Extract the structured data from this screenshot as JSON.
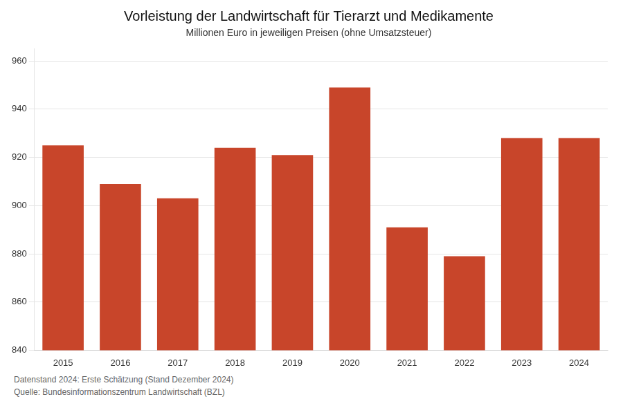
{
  "chart_data": {
    "type": "bar",
    "title": "Vorleistung der Landwirtschaft für Tierarzt und Medikamente",
    "subtitle": "Millionen Euro in jeweiligen Preisen (ohne Umsatzsteuer)",
    "annotations": [
      "Datenstand 2024: Erste Schätzung (Stand Dezember 2024)",
      "Quelle: Bundesinformationszentrum Landwirtschaft (BZL)"
    ],
    "categories": [
      "2015",
      "2016",
      "2017",
      "2018",
      "2019",
      "2020",
      "2021",
      "2022",
      "2023",
      "2024"
    ],
    "values": [
      925,
      909,
      903,
      924,
      921,
      949,
      891,
      879,
      928,
      928
    ],
    "color": "#C8452A",
    "ylim": [
      840,
      965
    ],
    "yticks": [
      840,
      860,
      880,
      900,
      920,
      940,
      960
    ],
    "grid": true
  }
}
